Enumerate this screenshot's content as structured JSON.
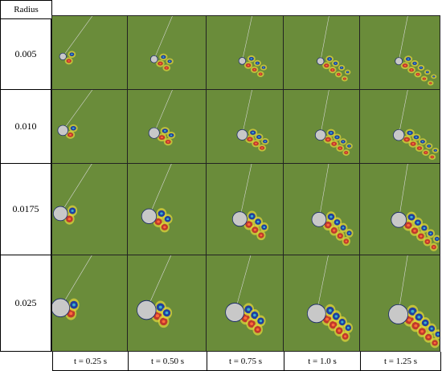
{
  "figure": {
    "header_label": "Radius",
    "rows": [
      {
        "label": "0.005",
        "radius": 0.005,
        "cylinder_size": 0.12,
        "tilt": [
          0.55,
          0.25,
          0.05,
          0.02,
          0.02
        ]
      },
      {
        "label": "0.010",
        "radius": 0.01,
        "cylinder_size": 0.18,
        "tilt": [
          0.55,
          0.25,
          0.05,
          0.02,
          0.02
        ]
      },
      {
        "label": "0.0175",
        "radius": 0.0175,
        "cylinder_size": 0.25,
        "tilt": [
          0.6,
          0.35,
          0.1,
          0.05,
          0.02
        ]
      },
      {
        "label": "0.025",
        "radius": 0.025,
        "cylinder_size": 0.32,
        "tilt": [
          0.6,
          0.4,
          0.2,
          0.1,
          0.03
        ]
      }
    ],
    "columns": [
      {
        "label": "t = 0.25 s",
        "time": 0.25
      },
      {
        "label": "t = 0.50 s",
        "time": 0.5
      },
      {
        "label": "t = 0.75 s",
        "time": 0.75
      },
      {
        "label": "t = 1.0 s",
        "time": 1.0
      },
      {
        "label": "t = 1.25 s",
        "time": 1.25
      }
    ],
    "colors": {
      "background": "#6a8c3a",
      "red": "#c0392b",
      "blue": "#1f3fa0",
      "yellow": "#e5d53a",
      "cyan": "#3ab0c8",
      "cylinder": "#c8c8c8"
    }
  }
}
